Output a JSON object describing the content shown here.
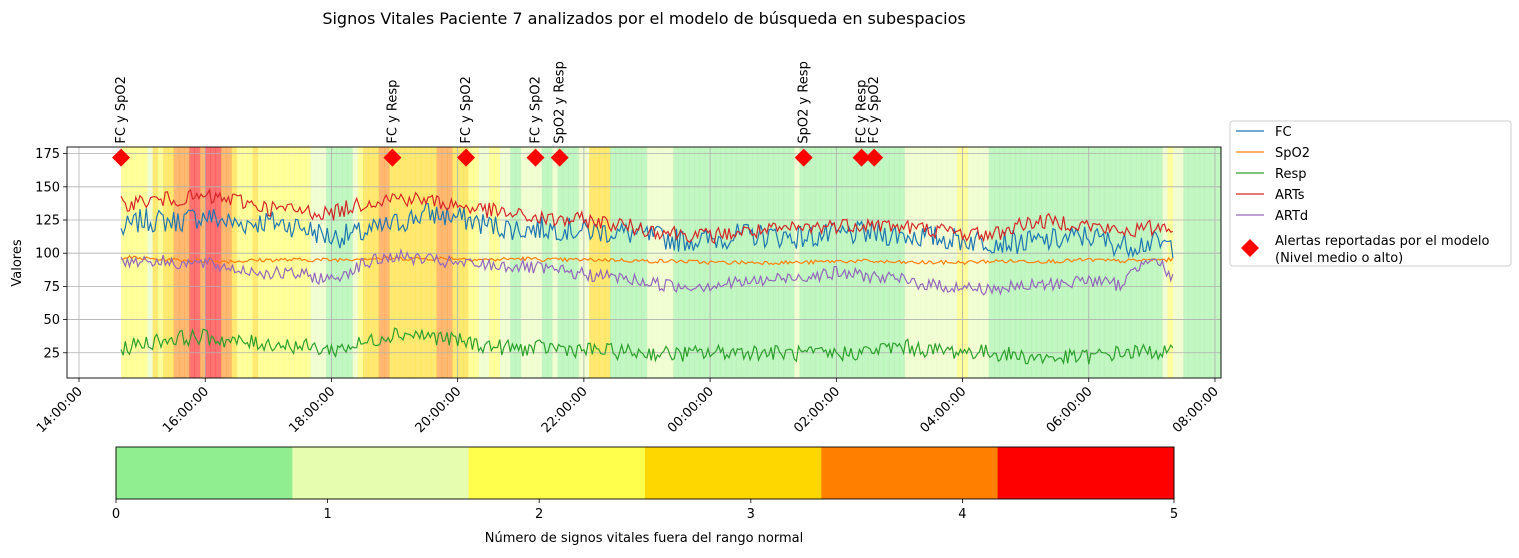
{
  "chart_data": {
    "type": "line",
    "title": "Signos Vitales Paciente 7 analizados por el modelo de búsqueda en subespacios",
    "xlabel": "",
    "ylabel": "Valores",
    "xlim": [
      "14:00:00",
      "08:00:00 (+1 día)"
    ],
    "ylim": [
      6,
      180
    ],
    "x_ticks": [
      "14:00:00",
      "16:00:00",
      "18:00:00",
      "20:00:00",
      "22:00:00",
      "00:00:00",
      "02:00:00",
      "04:00:00",
      "06:00:00",
      "08:00:00"
    ],
    "y_ticks": [
      25,
      50,
      75,
      100,
      125,
      150,
      175
    ],
    "grid": true,
    "legend_placement": "outside-right",
    "series": [
      {
        "name": "FC",
        "color": "#1f77b4",
        "x": [
          "14:40",
          "15:00",
          "15:30",
          "16:00",
          "16:30",
          "17:00",
          "17:30",
          "18:00",
          "18:30",
          "19:00",
          "19:30",
          "20:00",
          "20:30",
          "21:00",
          "21:30",
          "22:00",
          "22:30",
          "23:00",
          "23:30",
          "00:00",
          "00:30",
          "01:00",
          "01:30",
          "02:00",
          "02:30",
          "03:00",
          "03:30",
          "04:00",
          "04:30",
          "05:00",
          "05:30",
          "06:00",
          "06:30",
          "07:00",
          "07:20"
        ],
        "values": [
          117,
          125,
          124,
          128,
          122,
          124,
          120,
          112,
          115,
          122,
          130,
          127,
          121,
          118,
          119,
          117,
          116,
          113,
          110,
          110,
          114,
          113,
          112,
          114,
          115,
          114,
          112,
          110,
          109,
          108,
          110,
          113,
          106,
          108,
          105
        ]
      },
      {
        "name": "SpO2",
        "color": "#ff7f0e",
        "x": [
          "14:40",
          "15:00",
          "15:30",
          "16:00",
          "16:30",
          "17:00",
          "17:30",
          "18:00",
          "18:30",
          "19:00",
          "19:30",
          "20:00",
          "20:30",
          "21:00",
          "21:30",
          "22:00",
          "22:30",
          "23:00",
          "23:30",
          "00:00",
          "00:30",
          "01:00",
          "01:30",
          "02:00",
          "02:30",
          "03:00",
          "03:30",
          "04:00",
          "04:30",
          "05:00",
          "05:30",
          "06:00",
          "06:30",
          "07:00",
          "07:20"
        ],
        "values": [
          97,
          96,
          95,
          94,
          94,
          95,
          95,
          95,
          96,
          96,
          96,
          96,
          95,
          96,
          95,
          95,
          95,
          94,
          94,
          93,
          93,
          93,
          93,
          94,
          94,
          93,
          93,
          93,
          94,
          94,
          94,
          95,
          94,
          95,
          95
        ]
      },
      {
        "name": "Resp",
        "color": "#2ca02c",
        "x": [
          "14:40",
          "15:00",
          "15:30",
          "16:00",
          "16:30",
          "17:00",
          "17:30",
          "18:00",
          "18:30",
          "19:00",
          "19:30",
          "20:00",
          "20:30",
          "21:00",
          "21:30",
          "22:00",
          "22:30",
          "23:00",
          "23:30",
          "00:00",
          "00:30",
          "01:00",
          "01:30",
          "02:00",
          "02:30",
          "03:00",
          "03:30",
          "04:00",
          "04:30",
          "05:00",
          "05:30",
          "06:00",
          "06:30",
          "07:00",
          "07:20"
        ],
        "values": [
          28,
          32,
          36,
          37,
          33,
          32,
          30,
          27,
          32,
          40,
          38,
          34,
          30,
          28,
          29,
          27,
          26,
          25,
          24,
          25,
          26,
          25,
          24,
          24,
          26,
          30,
          27,
          26,
          25,
          22,
          21,
          22,
          25,
          26,
          25
        ]
      },
      {
        "name": "ARTs",
        "color": "#d62728",
        "x": [
          "14:40",
          "15:00",
          "15:30",
          "16:00",
          "16:30",
          "17:00",
          "17:30",
          "18:00",
          "18:30",
          "19:00",
          "19:30",
          "20:00",
          "20:30",
          "21:00",
          "21:30",
          "22:00",
          "22:30",
          "23:00",
          "23:30",
          "00:00",
          "00:30",
          "01:00",
          "01:30",
          "02:00",
          "02:30",
          "03:00",
          "03:30",
          "04:00",
          "04:30",
          "05:00",
          "05:30",
          "06:00",
          "06:30",
          "07:00",
          "07:20"
        ],
        "values": [
          137,
          139,
          141,
          142,
          140,
          134,
          132,
          130,
          138,
          142,
          140,
          136,
          132,
          128,
          125,
          125,
          122,
          118,
          115,
          113,
          116,
          117,
          119,
          121,
          122,
          120,
          118,
          115,
          114,
          123,
          124,
          121,
          116,
          119,
          121
        ]
      },
      {
        "name": "ARTd",
        "color": "#9467bd",
        "x": [
          "14:40",
          "15:00",
          "15:30",
          "16:00",
          "16:30",
          "17:00",
          "17:30",
          "18:00",
          "18:30",
          "19:00",
          "19:30",
          "20:00",
          "20:30",
          "21:00",
          "21:30",
          "22:00",
          "22:30",
          "23:00",
          "23:30",
          "00:00",
          "00:30",
          "01:00",
          "01:30",
          "02:00",
          "02:30",
          "03:00",
          "03:30",
          "04:00",
          "04:30",
          "05:00",
          "05:30",
          "06:00",
          "06:30",
          "07:00",
          "07:20"
        ],
        "values": [
          93,
          95,
          93,
          92,
          88,
          85,
          84,
          80,
          92,
          98,
          95,
          92,
          91,
          90,
          87,
          84,
          82,
          78,
          75,
          76,
          78,
          80,
          83,
          85,
          83,
          80,
          76,
          74,
          73,
          75,
          77,
          80,
          76,
          100,
          80
        ]
      }
    ],
    "alert_marker": {
      "label": "Alertas reportadas por el modelo\n(Nivel medio o alto)",
      "color": "#ff0000",
      "y": 172,
      "alerts": [
        {
          "time": "14:40",
          "text": "FC y SpO2"
        },
        {
          "time": "18:58",
          "text": "FC y Resp"
        },
        {
          "time": "20:08",
          "text": "FC y SpO2"
        },
        {
          "time": "21:14",
          "text": "FC y SpO2"
        },
        {
          "time": "21:37",
          "text": "SpO2 y Resp"
        },
        {
          "time": "01:29",
          "text": "SpO2 y Resp"
        },
        {
          "time": "02:24",
          "text": "FC y Resp"
        },
        {
          "time": "02:36",
          "text": "FC y SpO2"
        }
      ]
    },
    "background_levels": {
      "start": "14:40",
      "end": "07:25",
      "bin_minutes": 5,
      "levels": [
        2,
        2,
        2,
        2,
        2,
        1,
        3,
        2,
        3,
        3,
        4,
        4,
        4,
        5,
        5,
        4,
        5,
        5,
        5,
        4,
        4,
        3,
        2,
        2,
        2,
        3,
        2,
        2,
        2,
        2,
        2,
        2,
        2,
        2,
        2,
        2,
        1,
        1,
        1,
        0,
        0,
        0,
        0,
        0,
        1,
        2,
        3,
        3,
        3,
        4,
        4,
        3,
        3,
        3,
        3,
        3,
        3,
        3,
        3,
        3,
        4,
        4,
        4,
        3,
        3,
        3,
        2,
        2,
        1,
        1,
        2,
        2,
        1,
        1,
        0,
        0,
        1,
        1,
        1,
        1,
        0,
        0,
        1,
        0,
        0,
        0,
        0,
        1,
        1,
        3,
        3,
        3,
        3,
        0,
        0,
        0,
        0,
        0,
        0,
        0,
        1,
        1,
        1,
        1,
        1,
        0,
        0,
        0,
        0,
        0,
        0,
        0,
        0,
        0,
        0,
        0,
        0,
        0,
        0,
        0,
        0,
        0,
        0,
        0,
        0,
        0,
        0,
        0,
        1,
        0,
        0,
        0,
        0,
        0,
        0,
        0,
        0,
        0,
        0,
        0,
        0,
        0,
        0,
        0,
        0,
        0,
        0,
        0,
        0,
        1,
        1,
        1,
        1,
        1,
        1,
        1,
        1,
        1,
        1,
        2,
        2,
        1,
        1,
        1,
        1,
        0,
        0,
        0,
        0,
        0,
        0,
        0,
        0,
        0,
        0,
        0,
        0,
        0,
        0,
        0,
        0,
        0,
        0,
        0,
        0,
        0,
        0,
        0,
        0,
        0,
        0,
        0,
        0,
        0,
        0,
        0,
        0,
        0,
        1,
        2,
        1,
        1,
        0,
        0,
        0,
        0,
        0,
        0,
        0,
        0,
        0,
        0,
        0,
        0
      ]
    },
    "colorbar": {
      "label": "Número de signos vitales fuera del rango normal",
      "ticks": [
        "0",
        "1",
        "2",
        "3",
        "4",
        "5"
      ],
      "range": [
        0,
        5
      ],
      "colors": [
        "#90ee90",
        "#e6fcae",
        "#ffff4c",
        "#ffd700",
        "#ff8000",
        "#ff0000"
      ]
    }
  }
}
